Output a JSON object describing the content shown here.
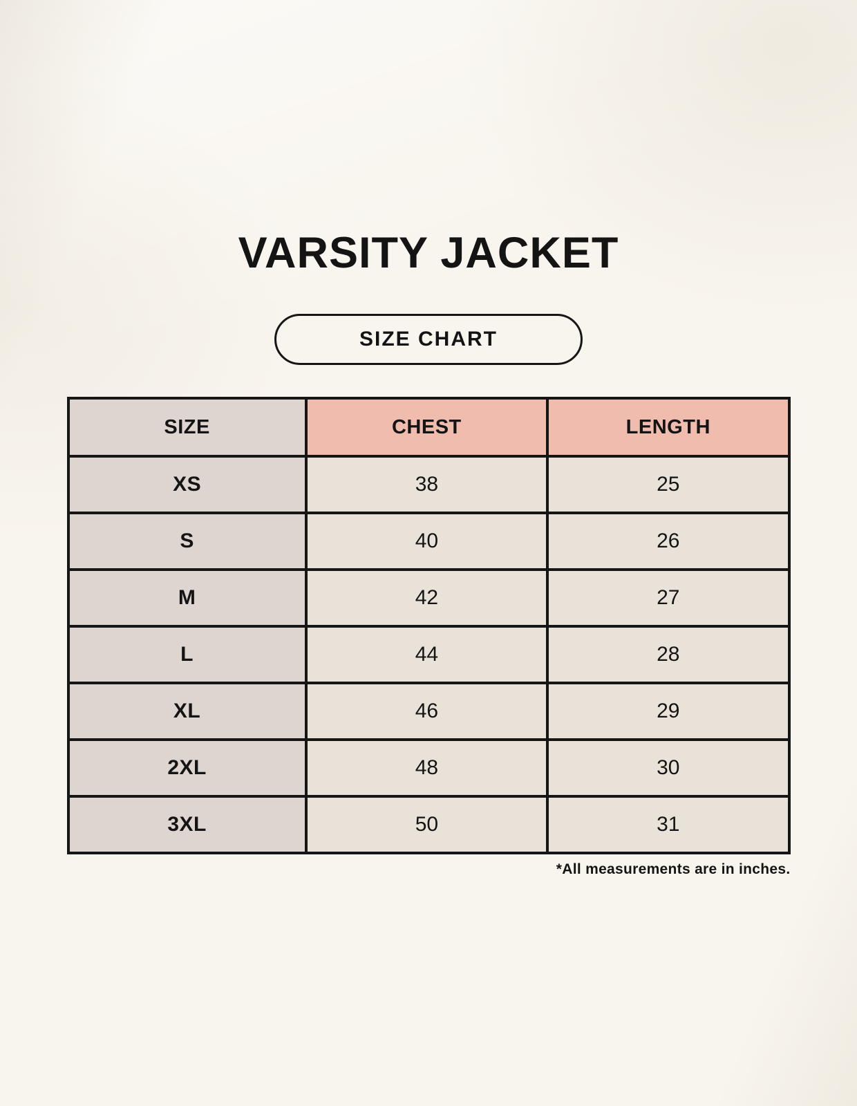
{
  "title": "VARSITY JACKET",
  "badge": {
    "label": "SIZE CHART"
  },
  "table": {
    "headers": [
      "SIZE",
      "CHEST",
      "LENGTH"
    ],
    "rows": [
      {
        "size": "XS",
        "chest": "38",
        "length": "25"
      },
      {
        "size": "S",
        "chest": "40",
        "length": "26"
      },
      {
        "size": "M",
        "chest": "42",
        "length": "27"
      },
      {
        "size": "L",
        "chest": "44",
        "length": "28"
      },
      {
        "size": "XL",
        "chest": "46",
        "length": "29"
      },
      {
        "size": "2XL",
        "chest": "48",
        "length": "30"
      },
      {
        "size": "3XL",
        "chest": "50",
        "length": "31"
      }
    ]
  },
  "footnote": "*All measurements are in inches.",
  "colors": {
    "background": "#f8f5ee",
    "accent_header": "#efbcad",
    "size_column": "#ded5d0",
    "cell": "#e9e2d8",
    "border": "#161616",
    "text": "#141414"
  },
  "chart_data": {
    "type": "table",
    "title": "VARSITY JACKET",
    "subtitle": "SIZE CHART",
    "columns": [
      "SIZE",
      "CHEST",
      "LENGTH"
    ],
    "rows": [
      [
        "XS",
        38,
        25
      ],
      [
        "S",
        40,
        26
      ],
      [
        "M",
        42,
        27
      ],
      [
        "L",
        44,
        28
      ],
      [
        "XL",
        46,
        29
      ],
      [
        "2XL",
        48,
        30
      ],
      [
        "3XL",
        50,
        31
      ]
    ],
    "units": "inches",
    "note": "*All measurements are in inches."
  }
}
